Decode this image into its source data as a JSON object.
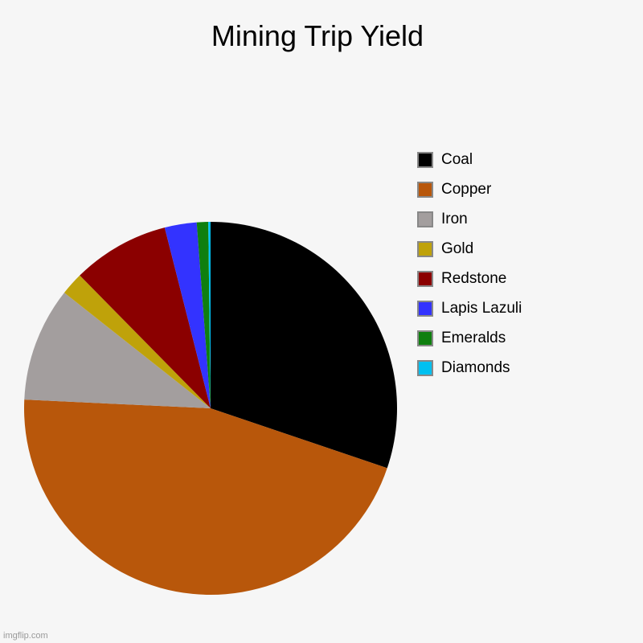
{
  "chart_data": {
    "type": "pie",
    "title": "Mining Trip Yield",
    "categories": [
      "Coal",
      "Copper",
      "Iron",
      "Gold",
      "Redstone",
      "Lapis Lazuli",
      "Emeralds",
      "Diamonds"
    ],
    "values": [
      30.5,
      46.0,
      10.0,
      2.0,
      8.5,
      2.8,
      1.0,
      0.2
    ],
    "colors": [
      "#000000",
      "#b8570b",
      "#a39e9e",
      "#bfa20a",
      "#8b0000",
      "#3333ff",
      "#0f7f0f",
      "#00c0f0"
    ],
    "legend_position": "right",
    "start_angle": "12 o'clock",
    "direction": "clockwise"
  },
  "watermark": "imgflip.com"
}
